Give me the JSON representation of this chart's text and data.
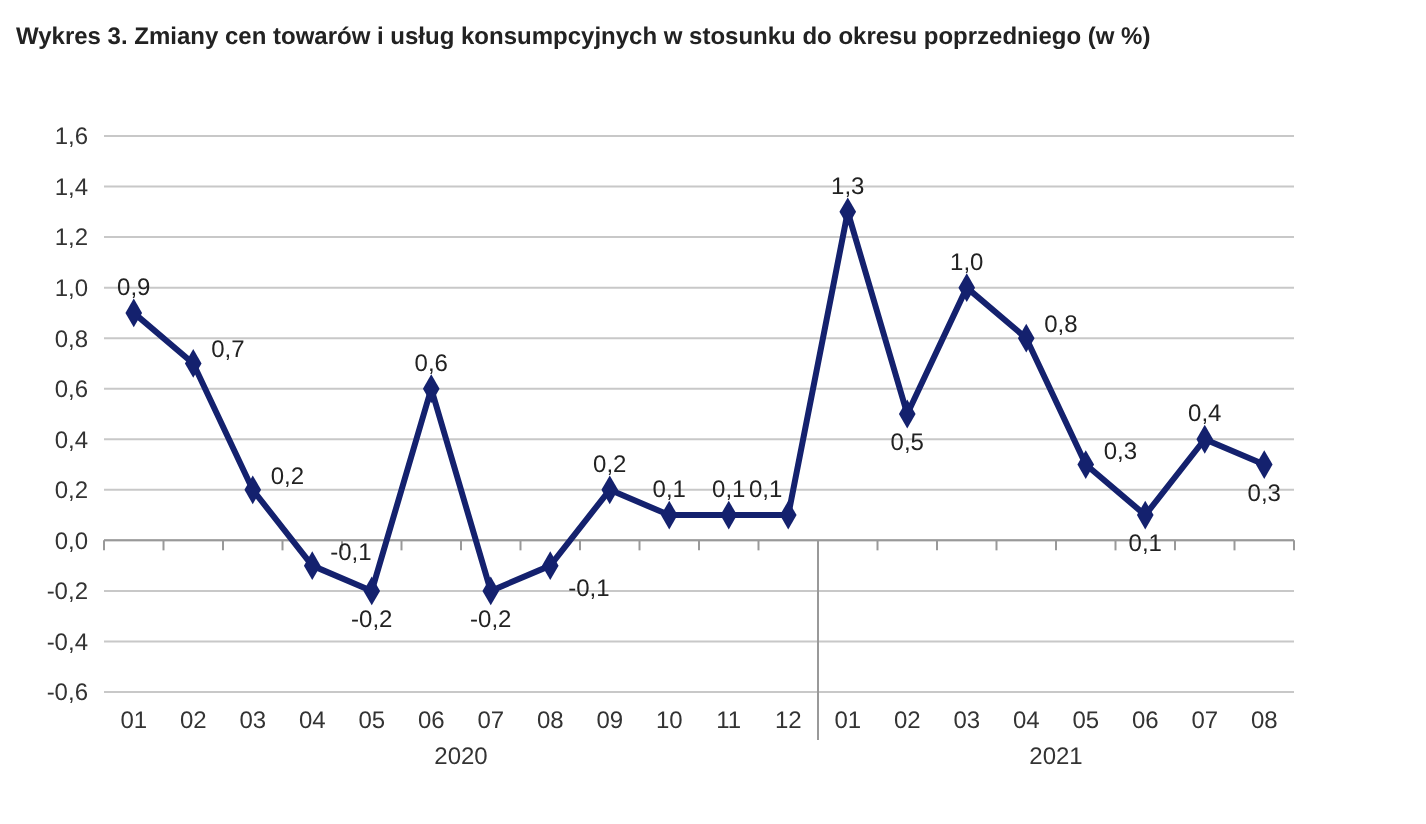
{
  "chart_data": {
    "type": "line",
    "title": "Wykres 3. Zmiany cen towarów i usług konsumpcyjnych w stosunku do okresu poprzedniego (w %)",
    "categories": [
      "01",
      "02",
      "03",
      "04",
      "05",
      "06",
      "07",
      "08",
      "09",
      "10",
      "11",
      "12",
      "01",
      "02",
      "03",
      "04",
      "05",
      "06",
      "07",
      "08"
    ],
    "series": [
      {
        "color": "#14216e",
        "values": [
          0.9,
          0.7,
          0.2,
          -0.1,
          -0.2,
          0.6,
          -0.2,
          -0.1,
          0.2,
          0.1,
          0.1,
          0.1,
          1.3,
          0.5,
          1.0,
          0.8,
          0.3,
          0.1,
          0.4,
          0.3
        ],
        "value_labels": [
          "0,9",
          "0,7",
          "0,2",
          "-0,1",
          "-0,2",
          "0,6",
          "-0,2",
          "-0,1",
          "0,2",
          "0,1",
          "0,1",
          "0,1",
          "1,3",
          "0,5",
          "1,0",
          "0,8",
          "0,3",
          "0,1",
          "0,4",
          "0,3"
        ]
      }
    ],
    "ylim": [
      -0.6,
      1.6
    ],
    "yticks": [
      {
        "value": -0.6,
        "label": "-0,6"
      },
      {
        "value": -0.4,
        "label": "-0,4"
      },
      {
        "value": -0.2,
        "label": "-0,2"
      },
      {
        "value": 0,
        "label": "0,0"
      },
      {
        "value": 0.2,
        "label": "0,2"
      },
      {
        "value": 0.4,
        "label": "0,4"
      },
      {
        "value": 0.6,
        "label": "0,6"
      },
      {
        "value": 0.8,
        "label": "0,8"
      },
      {
        "value": 1.0,
        "label": "1,0"
      },
      {
        "value": 1.2,
        "label": "1,2"
      },
      {
        "value": 1.4,
        "label": "1,4"
      },
      {
        "value": 1.6,
        "label": "1,6"
      }
    ],
    "annotations": [
      "2020",
      "2021"
    ],
    "grid": "y",
    "marker": "diamond",
    "line_style": "solid"
  }
}
